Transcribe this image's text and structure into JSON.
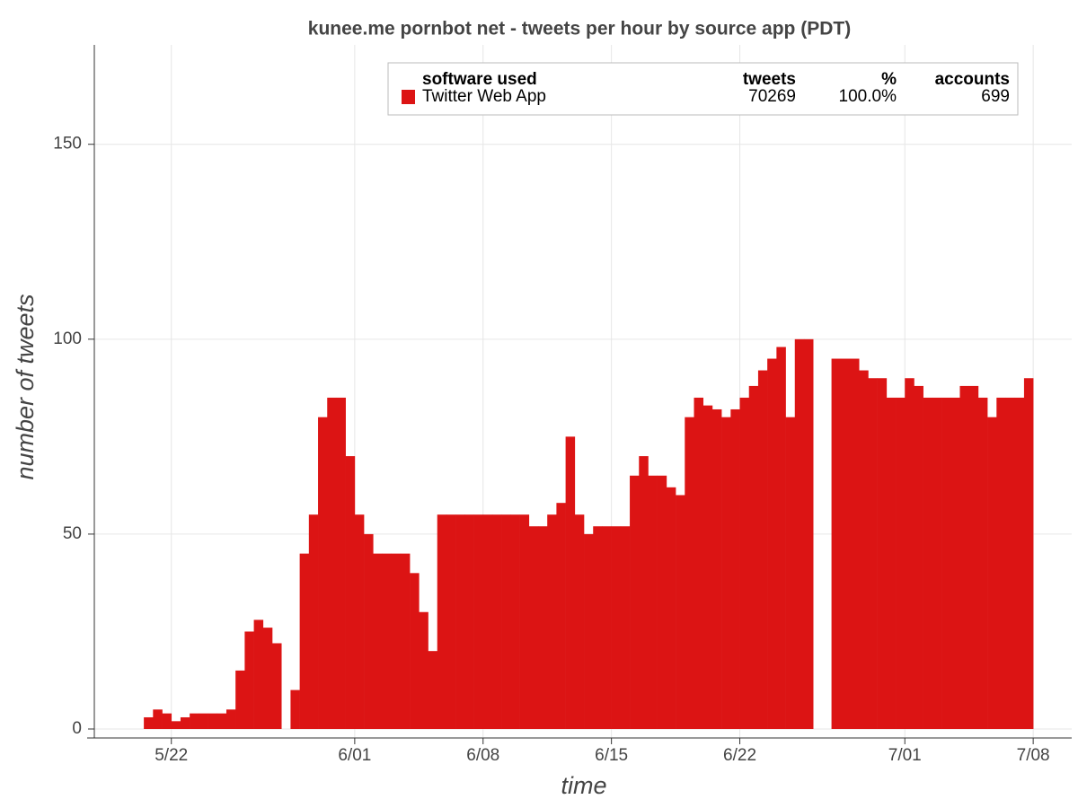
{
  "chart_data": {
    "type": "bar",
    "title": "kunee.me pornbot net - tweets per hour by source app (PDT)",
    "x_label": "time",
    "y_label": "number of tweets",
    "x": [
      20.5,
      21,
      21.5,
      22,
      22.5,
      23,
      23.5,
      24,
      24.5,
      25,
      25.5,
      26,
      26.5,
      27,
      27.5,
      28,
      28.5,
      29,
      29.5,
      30,
      30.5,
      31,
      31.5,
      32,
      32.5,
      33,
      33.5,
      34,
      34.5,
      35,
      35.5,
      36,
      36.5,
      37,
      37.5,
      38,
      38.5,
      39,
      39.5,
      40,
      40.5,
      41,
      41.5,
      42,
      42.5,
      43,
      43.5,
      44,
      44.5,
      45,
      45.5,
      46,
      46.5,
      47,
      47.5,
      48,
      48.5,
      49,
      49.5,
      50,
      50.5,
      51,
      51.5,
      52,
      52.5,
      53,
      53.5,
      54,
      54.5,
      55,
      55.5,
      56,
      56.5,
      57,
      57.5,
      58,
      58.5,
      59,
      59.5,
      60,
      60.5,
      61,
      61.5,
      62,
      62.5,
      63,
      63.5,
      64,
      64.5,
      65,
      65.5,
      66,
      66.5,
      67,
      67.5,
      68,
      68.5
    ],
    "series": [
      {
        "name": "Twitter Web App",
        "color": "#dc1414",
        "values": [
          3,
          5,
          4,
          2,
          3,
          4,
          4,
          4,
          4,
          5,
          15,
          25,
          28,
          26,
          22,
          0,
          10,
          45,
          55,
          80,
          85,
          85,
          70,
          55,
          50,
          45,
          45,
          45,
          45,
          40,
          30,
          20,
          55,
          55,
          55,
          55,
          55,
          55,
          55,
          55,
          55,
          55,
          52,
          52,
          55,
          58,
          75,
          55,
          50,
          52,
          52,
          52,
          52,
          65,
          70,
          65,
          65,
          62,
          60,
          80,
          85,
          83,
          82,
          80,
          82,
          85,
          88,
          92,
          95,
          98,
          80,
          100,
          100,
          0,
          0,
          95,
          95,
          95,
          92,
          90,
          90,
          85,
          85,
          90,
          88,
          85,
          85,
          85,
          85,
          88,
          88,
          85,
          80,
          85,
          85,
          85,
          90
        ]
      }
    ],
    "xlim": [
      17.8,
      71.1
    ],
    "xticks": [
      {
        "value": 22,
        "label": "5/22"
      },
      {
        "value": 32,
        "label": "6/01"
      },
      {
        "value": 39,
        "label": "6/08"
      },
      {
        "value": 46,
        "label": "6/15"
      },
      {
        "value": 53,
        "label": "6/22"
      },
      {
        "value": 62,
        "label": "7/01"
      },
      {
        "value": 69,
        "label": "7/08"
      }
    ],
    "ylim": [
      -2.3,
      175.5
    ],
    "yticks": [
      0,
      50,
      100,
      150
    ],
    "grid": true,
    "legend": {
      "header": [
        "software used",
        "tweets",
        "%",
        "accounts"
      ],
      "rows": [
        [
          "Twitter Web App",
          70269,
          "100.0%",
          699
        ]
      ]
    }
  }
}
